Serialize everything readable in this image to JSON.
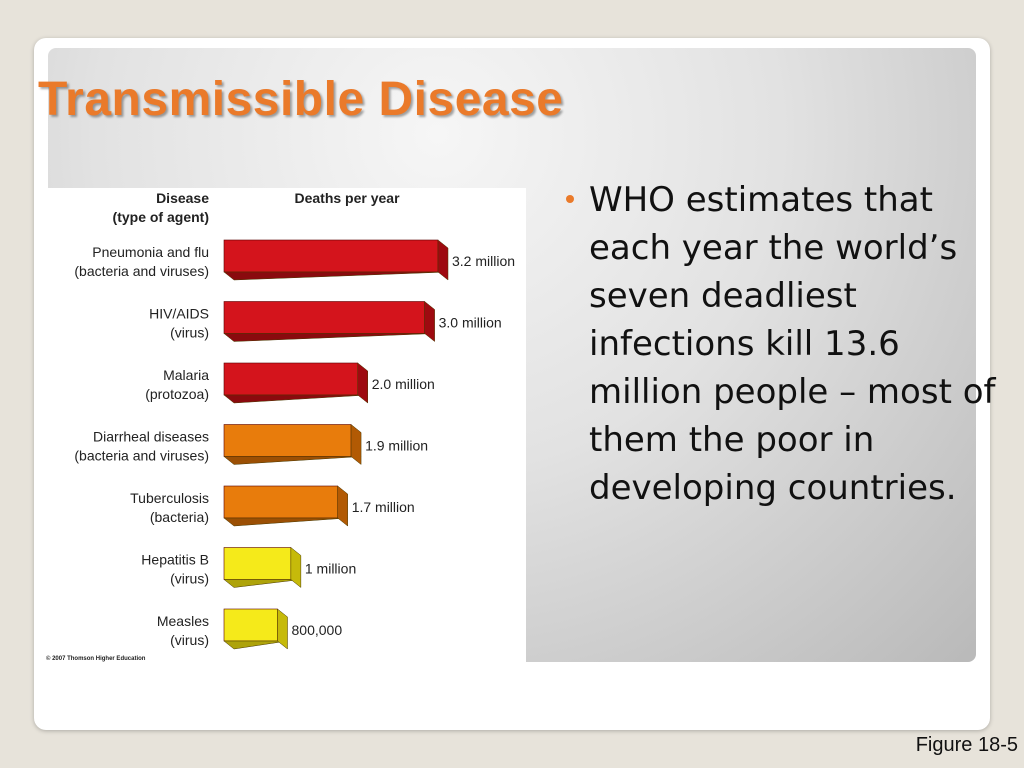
{
  "slide": {
    "title": "Transmissible Disease",
    "bullet": "WHO estimates that each year the world’s seven deadliest infections kill 13.6 million people – most of them the poor in developing countries.",
    "figure_caption": "Figure 18-5"
  },
  "colors": {
    "title_orange": "#ea7a2a",
    "bar_red": "#d4141c",
    "bar_orange": "#e87c0c",
    "bar_yellow": "#f5ea1a"
  },
  "chart_data": {
    "type": "bar",
    "orientation": "horizontal",
    "header_category": "Disease\n(type of agent)",
    "header_value": "Deaths per year",
    "copyright": "© 2007 Thomson Higher Education",
    "categories": [
      {
        "name": "Pneumonia and flu",
        "agent": "(bacteria and viruses)",
        "value": 3200000,
        "label": "3.2 million",
        "color": "red"
      },
      {
        "name": "HIV/AIDS",
        "agent": "(virus)",
        "value": 3000000,
        "label": "3.0 million",
        "color": "red"
      },
      {
        "name": "Malaria",
        "agent": "(protozoa)",
        "value": 2000000,
        "label": "2.0 million",
        "color": "red"
      },
      {
        "name": "Diarrheal diseases",
        "agent": "(bacteria and viruses)",
        "value": 1900000,
        "label": "1.9 million",
        "color": "orange"
      },
      {
        "name": "Tuberculosis",
        "agent": "(bacteria)",
        "value": 1700000,
        "label": "1.7 million",
        "color": "orange"
      },
      {
        "name": "Hepatitis B",
        "agent": "(virus)",
        "value": 1000000,
        "label": "1 million",
        "color": "yellow"
      },
      {
        "name": "Measles",
        "agent": "(virus)",
        "value": 800000,
        "label": "800,000",
        "color": "yellow"
      }
    ]
  }
}
